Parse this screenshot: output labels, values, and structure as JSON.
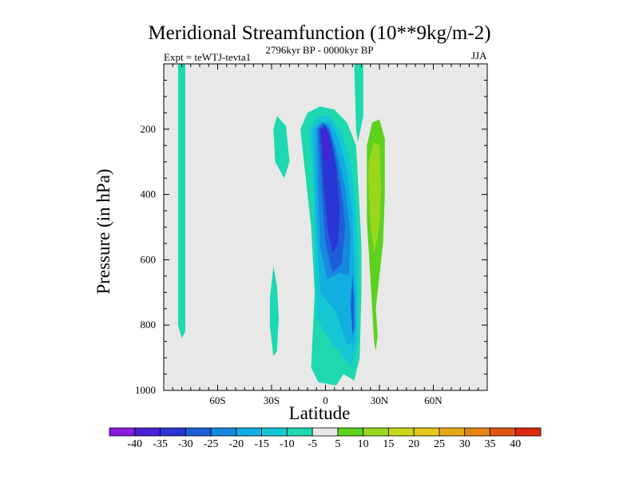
{
  "chart_data": {
    "type": "contour",
    "title": "Meridional Streamfunction (10**9kg/m-2)",
    "subtitle_left": "Expt = teWTJ-tevta1",
    "subtitle_center": "2796kyr BP - 0000kyr BP",
    "subtitle_right": "JJA",
    "xlabel": "Latitude",
    "ylabel": "Pressure (in hPa)",
    "xlim": [
      -90,
      90
    ],
    "ylim": [
      0,
      1000
    ],
    "x_ticks": [
      {
        "value": -60,
        "label": "60S"
      },
      {
        "value": -30,
        "label": "30S"
      },
      {
        "value": 0,
        "label": "0"
      },
      {
        "value": 30,
        "label": "30N"
      },
      {
        "value": 60,
        "label": "60N"
      }
    ],
    "y_ticks": [
      {
        "value": 200,
        "label": "200"
      },
      {
        "value": 400,
        "label": "400"
      },
      {
        "value": 600,
        "label": "600"
      },
      {
        "value": 800,
        "label": "800"
      },
      {
        "value": 1000,
        "label": "1000"
      }
    ],
    "background_color": "#e8e8e8",
    "levels": [
      {
        "label": "-40",
        "color": "#8a1ce0"
      },
      {
        "label": "-35",
        "color": "#4b1fd6"
      },
      {
        "label": "-30",
        "color": "#2a36d4"
      },
      {
        "label": "-25",
        "color": "#1f5ed9"
      },
      {
        "label": "-20",
        "color": "#1787e0"
      },
      {
        "label": "-15",
        "color": "#12aee0"
      },
      {
        "label": "-10",
        "color": "#13c8d2"
      },
      {
        "label": "-5",
        "color": "#1ed8b0"
      },
      {
        "label": "5",
        "color": "#e8e8e8"
      },
      {
        "label": "10",
        "color": "#5cd21e"
      },
      {
        "label": "15",
        "color": "#9bd61e"
      },
      {
        "label": "20",
        "color": "#c8d81c"
      },
      {
        "label": "25",
        "color": "#e4c81a"
      },
      {
        "label": "30",
        "color": "#e6a716"
      },
      {
        "label": "35",
        "color": "#e38414"
      },
      {
        "label": "40",
        "color": "#e05512"
      },
      {
        "label": "",
        "color": "#da2a10"
      }
    ],
    "regions": [
      {
        "name": "southern-polar-band",
        "level": -5,
        "points": [
          [
            -82,
            0
          ],
          [
            -78,
            0
          ],
          [
            -78,
            820
          ],
          [
            -80,
            840
          ],
          [
            -82,
            800
          ]
        ]
      },
      {
        "name": "southern-midlat-upper-cell",
        "level": -5,
        "points": [
          [
            -29,
            200
          ],
          [
            -27,
            160
          ],
          [
            -22,
            190
          ],
          [
            -20,
            300
          ],
          [
            -23,
            350
          ],
          [
            -28,
            300
          ]
        ]
      },
      {
        "name": "southern-midlat-lower-cell",
        "level": -5,
        "points": [
          [
            -31,
            720
          ],
          [
            -29,
            620
          ],
          [
            -27,
            680
          ],
          [
            -26,
            780
          ],
          [
            -27,
            880
          ],
          [
            -29,
            895
          ],
          [
            -31,
            800
          ]
        ]
      },
      {
        "name": "northern-subtropic-band",
        "level": -5,
        "points": [
          [
            16,
            0
          ],
          [
            21,
            0
          ],
          [
            21,
            160
          ],
          [
            18,
            240
          ],
          [
            17,
            200
          ]
        ]
      },
      {
        "name": "hadley-cell-level-5",
        "level": -5,
        "points": [
          [
            -14,
            200
          ],
          [
            -10,
            150
          ],
          [
            -3,
            130
          ],
          [
            5,
            140
          ],
          [
            12,
            180
          ],
          [
            17,
            250
          ],
          [
            19,
            450
          ],
          [
            20,
            560
          ],
          [
            20,
            700
          ],
          [
            19,
            900
          ],
          [
            16,
            970
          ],
          [
            10,
            950
          ],
          [
            6,
            985
          ],
          [
            -4,
            975
          ],
          [
            -8,
            930
          ],
          [
            -6,
            700
          ],
          [
            -8,
            500
          ],
          [
            -11,
            350
          ]
        ]
      },
      {
        "name": "hadley-cell-level-10",
        "level": -10,
        "points": [
          [
            -9,
            200
          ],
          [
            -5,
            160
          ],
          [
            2,
            160
          ],
          [
            9,
            210
          ],
          [
            14,
            300
          ],
          [
            17,
            450
          ],
          [
            18,
            600
          ],
          [
            18,
            850
          ],
          [
            15,
            930
          ],
          [
            10,
            900
          ],
          [
            3,
            850
          ],
          [
            -5,
            780
          ],
          [
            -6,
            550
          ],
          [
            -7,
            350
          ]
        ]
      },
      {
        "name": "hadley-cell-level-15",
        "level": -15,
        "points": [
          [
            -7,
            200
          ],
          [
            -3,
            175
          ],
          [
            3,
            180
          ],
          [
            8,
            240
          ],
          [
            12,
            330
          ],
          [
            15,
            450
          ],
          [
            16,
            600
          ],
          [
            16,
            850
          ],
          [
            12,
            860
          ],
          [
            6,
            760
          ],
          [
            -3,
            700
          ],
          [
            -5,
            500
          ],
          [
            -6,
            330
          ]
        ]
      },
      {
        "name": "hadley-cell-level-20",
        "level": -20,
        "points": [
          [
            -5,
            200
          ],
          [
            -2,
            180
          ],
          [
            2,
            190
          ],
          [
            6,
            260
          ],
          [
            11,
            380
          ],
          [
            14,
            520
          ],
          [
            13,
            650
          ],
          [
            8,
            640
          ],
          [
            1,
            660
          ],
          [
            -3,
            560
          ],
          [
            -4,
            400
          ]
        ]
      },
      {
        "name": "hadley-cell-level-25",
        "level": -25,
        "points": [
          [
            -4,
            200
          ],
          [
            -1,
            180
          ],
          [
            2,
            200
          ],
          [
            6,
            290
          ],
          [
            9,
            400
          ],
          [
            11,
            500
          ],
          [
            9,
            610
          ],
          [
            4,
            640
          ],
          [
            0,
            550
          ],
          [
            -2,
            400
          ]
        ]
      },
      {
        "name": "hadley-cell-level-30",
        "level": -30,
        "points": [
          [
            -3,
            200
          ],
          [
            0,
            190
          ],
          [
            3,
            230
          ],
          [
            6,
            320
          ],
          [
            8,
            450
          ],
          [
            7,
            550
          ],
          [
            4,
            580
          ],
          [
            1,
            500
          ],
          [
            -1,
            370
          ]
        ]
      },
      {
        "name": "hadley-cell-level-35",
        "level": -35,
        "points": [
          [
            -2,
            215
          ],
          [
            0,
            195
          ],
          [
            2,
            240
          ],
          [
            2,
            290
          ],
          [
            0,
            300
          ],
          [
            -1,
            260
          ]
        ]
      },
      {
        "name": "hadley-cell-lower-branch-a",
        "level": -15,
        "points": [
          [
            15,
            580
          ],
          [
            17,
            700
          ],
          [
            17,
            820
          ],
          [
            15,
            880
          ],
          [
            14,
            760
          ]
        ]
      },
      {
        "name": "hadley-cell-lower-branch-b",
        "level": -25,
        "points": [
          [
            15,
            640
          ],
          [
            16,
            730
          ],
          [
            16,
            810
          ],
          [
            15,
            830
          ],
          [
            14,
            740
          ]
        ]
      },
      {
        "name": "northern-positive-cell-outer",
        "level": 10,
        "points": [
          [
            23,
            250
          ],
          [
            26,
            180
          ],
          [
            30,
            170
          ],
          [
            33,
            230
          ],
          [
            33,
            400
          ],
          [
            32,
            550
          ],
          [
            30,
            650
          ],
          [
            28,
            750
          ],
          [
            29,
            830
          ],
          [
            28,
            880
          ],
          [
            27,
            850
          ],
          [
            25,
            660
          ],
          [
            23,
            480
          ]
        ]
      },
      {
        "name": "northern-positive-cell-inner",
        "level": 15,
        "points": [
          [
            24,
            300
          ],
          [
            27,
            240
          ],
          [
            30,
            250
          ],
          [
            31,
            380
          ],
          [
            30,
            500
          ],
          [
            27,
            580
          ],
          [
            25,
            490
          ],
          [
            24,
            380
          ]
        ]
      }
    ]
  }
}
